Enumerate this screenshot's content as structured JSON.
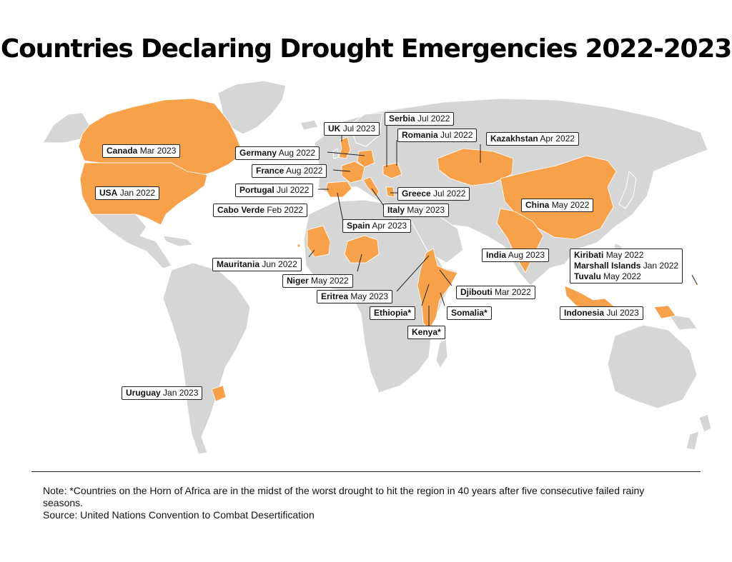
{
  "title": "Countries Declaring Drought Emergencies 2022-2023",
  "colors": {
    "drought": "#f7a24a",
    "land": "#d6d6d6",
    "border": "#ffffff",
    "text": "#111111"
  },
  "labels": [
    {
      "id": "canada",
      "country": "Canada",
      "date": "Mar 2023"
    },
    {
      "id": "usa",
      "country": "USA",
      "date": "Jan 2022"
    },
    {
      "id": "uk",
      "country": "UK",
      "date": "Jul 2023"
    },
    {
      "id": "serbia",
      "country": "Serbia",
      "date": "Jul 2022"
    },
    {
      "id": "romania",
      "country": "Romania",
      "date": "Jul 2022"
    },
    {
      "id": "germany",
      "country": "Germany",
      "date": "Aug 2022"
    },
    {
      "id": "france",
      "country": "France",
      "date": "Aug 2022"
    },
    {
      "id": "portugal",
      "country": "Portugal",
      "date": "Jul 2022"
    },
    {
      "id": "cabo-verde",
      "country": "Cabo Verde",
      "date": "Feb 2022"
    },
    {
      "id": "greece",
      "country": "Greece",
      "date": "Jul 2022"
    },
    {
      "id": "italy",
      "country": "Italy",
      "date": "May 2023"
    },
    {
      "id": "spain",
      "country": "Spain",
      "date": "Apr 2023"
    },
    {
      "id": "kazakhstan",
      "country": "Kazakhstan",
      "date": "Apr 2022"
    },
    {
      "id": "china",
      "country": "China",
      "date": "May 2022"
    },
    {
      "id": "mauritania",
      "country": "Mauritania",
      "date": "Jun 2022"
    },
    {
      "id": "niger",
      "country": "Niger",
      "date": "May 2022"
    },
    {
      "id": "eritrea",
      "country": "Eritrea",
      "date": "May 2023"
    },
    {
      "id": "india",
      "country": "India",
      "date": "Aug 2023"
    },
    {
      "id": "djibouti",
      "country": "Djibouti",
      "date": "Mar 2022"
    },
    {
      "id": "ethiopia",
      "country": "Ethiopia*",
      "date": ""
    },
    {
      "id": "somalia",
      "country": "Somalia*",
      "date": ""
    },
    {
      "id": "kenya",
      "country": "Kenya*",
      "date": ""
    },
    {
      "id": "indonesia",
      "country": "Indonesia",
      "date": "Jul 2023"
    },
    {
      "id": "uruguay",
      "country": "Uruguay",
      "date": "Jan 2023"
    }
  ],
  "pacific_group": [
    {
      "country": "Kiribati",
      "date": "May 2022"
    },
    {
      "country": "Marshall Islands",
      "date": "Jan 2022"
    },
    {
      "country": "Tuvalu",
      "date": "May 2022"
    }
  ],
  "footer": {
    "note": "Note: *Countries on the Horn of Africa are in the midst of the worst drought to hit the region in 40 years after five consecutive failed rainy seasons.",
    "source": "Source: United Nations Convention to Combat Desertification"
  }
}
